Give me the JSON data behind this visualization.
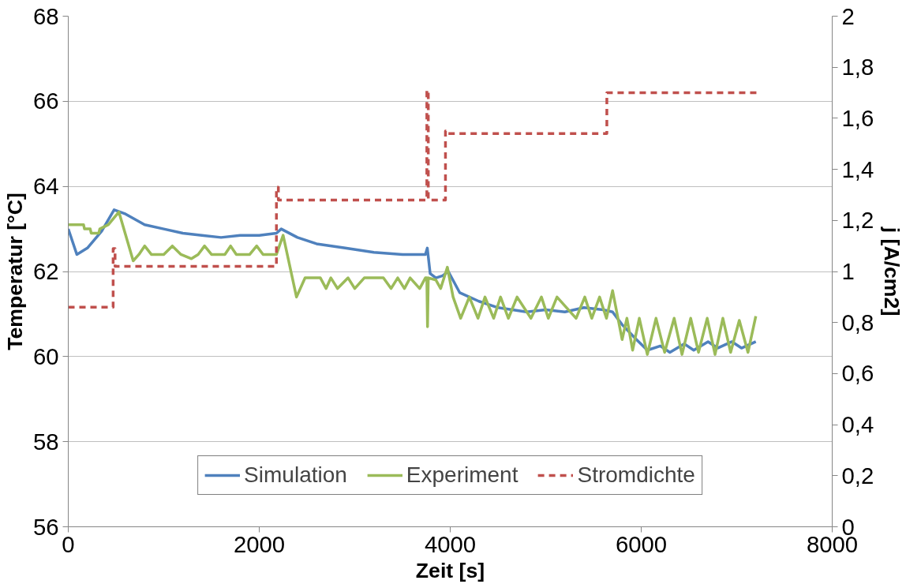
{
  "chart_data": {
    "type": "line",
    "xlabel": "Zeit [s]",
    "ylabel": "Temperatur [°C]",
    "y2label": "j [A/cm2]",
    "xlim": [
      0,
      8000
    ],
    "xticks": [
      0,
      2000,
      4000,
      6000,
      8000
    ],
    "ylim": [
      56,
      68
    ],
    "yticks": [
      56,
      58,
      60,
      62,
      64,
      66,
      68
    ],
    "y2lim": [
      0,
      2
    ],
    "y2ticks": [
      0,
      {
        "value": 0.2,
        "label": "0,2"
      },
      {
        "value": 0.4,
        "label": "0,4"
      },
      {
        "value": 0.6,
        "label": "0,6"
      },
      {
        "value": 0.8,
        "label": "0,8"
      },
      1,
      {
        "value": 1.2,
        "label": "1,2"
      },
      {
        "value": 1.4,
        "label": "1,4"
      },
      {
        "value": 1.6,
        "label": "1,6"
      },
      {
        "value": 1.8,
        "label": "1,8"
      },
      2
    ],
    "grid": "y",
    "legend": "bottom",
    "marker": "none",
    "series": [
      {
        "name": "Simulation",
        "color": "#4f81bd",
        "line_style": "solid",
        "x": [
          0,
          90,
          200,
          350,
          480,
          600,
          800,
          1000,
          1200,
          1400,
          1600,
          1800,
          2000,
          2180,
          2230,
          2400,
          2600,
          2900,
          3200,
          3500,
          3740,
          3760,
          3790,
          3850,
          3920,
          3980,
          4100,
          4300,
          4500,
          4800,
          5000,
          5200,
          5400,
          5600,
          5700,
          5800,
          5950,
          6064,
          6200,
          6300,
          6450,
          6550,
          6700,
          6800,
          6950,
          7050,
          7200
        ],
        "values": [
          63.0,
          62.4,
          62.55,
          62.95,
          63.45,
          63.35,
          63.1,
          63.0,
          62.9,
          62.85,
          62.8,
          62.85,
          62.85,
          62.9,
          63.0,
          62.8,
          62.65,
          62.55,
          62.45,
          62.4,
          62.4,
          62.55,
          61.95,
          61.85,
          61.9,
          62.0,
          61.5,
          61.3,
          61.15,
          61.05,
          61.1,
          61.05,
          61.15,
          61.1,
          61.05,
          60.75,
          60.4,
          60.15,
          60.25,
          60.1,
          60.3,
          60.15,
          60.35,
          60.2,
          60.35,
          60.2,
          60.35
        ]
      },
      {
        "name": "Experiment",
        "color": "#9bbb59",
        "line_style": "solid",
        "x": [
          0,
          160,
          170,
          230,
          240,
          320,
          330,
          420,
          530,
          680,
          740,
          800,
          870,
          1000,
          1090,
          1180,
          1290,
          1360,
          1427,
          1500,
          1640,
          1700,
          1760,
          1900,
          1973,
          2040,
          2180,
          2250,
          2390,
          2480,
          2640,
          2700,
          2750,
          2820,
          2930,
          3000,
          3100,
          3300,
          3380,
          3450,
          3520,
          3580,
          3680,
          3740,
          3755,
          3762,
          3770,
          3850,
          3900,
          3970,
          4030,
          4109,
          4200,
          4291,
          4364,
          4455,
          4527,
          4609,
          4700,
          4845,
          4955,
          5027,
          5118,
          5318,
          5409,
          5482,
          5564,
          5636,
          5700,
          5800,
          5850,
          5910,
          5980,
          6064,
          6155,
          6245,
          6345,
          6427,
          6518,
          6600,
          6691,
          6773,
          6855,
          6936,
          7027,
          7118,
          7200
        ],
        "values": [
          63.1,
          63.1,
          63.0,
          63.0,
          62.9,
          62.9,
          63.0,
          63.1,
          63.4,
          62.25,
          62.4,
          62.6,
          62.4,
          62.4,
          62.6,
          62.4,
          62.3,
          62.4,
          62.6,
          62.4,
          62.4,
          62.6,
          62.4,
          62.4,
          62.6,
          62.4,
          62.4,
          62.85,
          61.4,
          61.85,
          61.85,
          61.6,
          61.85,
          61.6,
          61.85,
          61.6,
          61.85,
          61.85,
          61.6,
          61.85,
          61.6,
          61.85,
          61.6,
          61.85,
          61.85,
          60.7,
          61.85,
          61.8,
          61.6,
          62.1,
          61.4,
          60.9,
          61.4,
          60.9,
          61.4,
          60.9,
          61.4,
          60.9,
          61.4,
          60.9,
          61.4,
          60.9,
          61.4,
          60.9,
          61.4,
          60.9,
          61.4,
          60.9,
          61.55,
          60.4,
          60.9,
          60.15,
          60.9,
          60.05,
          60.9,
          60.1,
          60.9,
          60.05,
          60.9,
          60.1,
          60.9,
          60.05,
          60.9,
          60.1,
          60.85,
          60.1,
          60.95
        ]
      },
      {
        "name": "Stromdichte",
        "color": "#c0504d",
        "line_style": "dashed",
        "axis": "y2",
        "x": [
          0,
          470,
          470,
          490,
          490,
          2180,
          2180,
          2200,
          2200,
          3755,
          3755,
          3770,
          3770,
          3950,
          3950,
          3970,
          3970,
          5640,
          5640,
          7230
        ],
        "values": [
          0.86,
          0.86,
          1.09,
          1.09,
          1.02,
          1.02,
          1.33,
          1.33,
          1.28,
          1.28,
          1.71,
          1.71,
          1.28,
          1.28,
          1.55,
          1.55,
          1.54,
          1.54,
          1.7,
          1.7
        ]
      }
    ]
  }
}
